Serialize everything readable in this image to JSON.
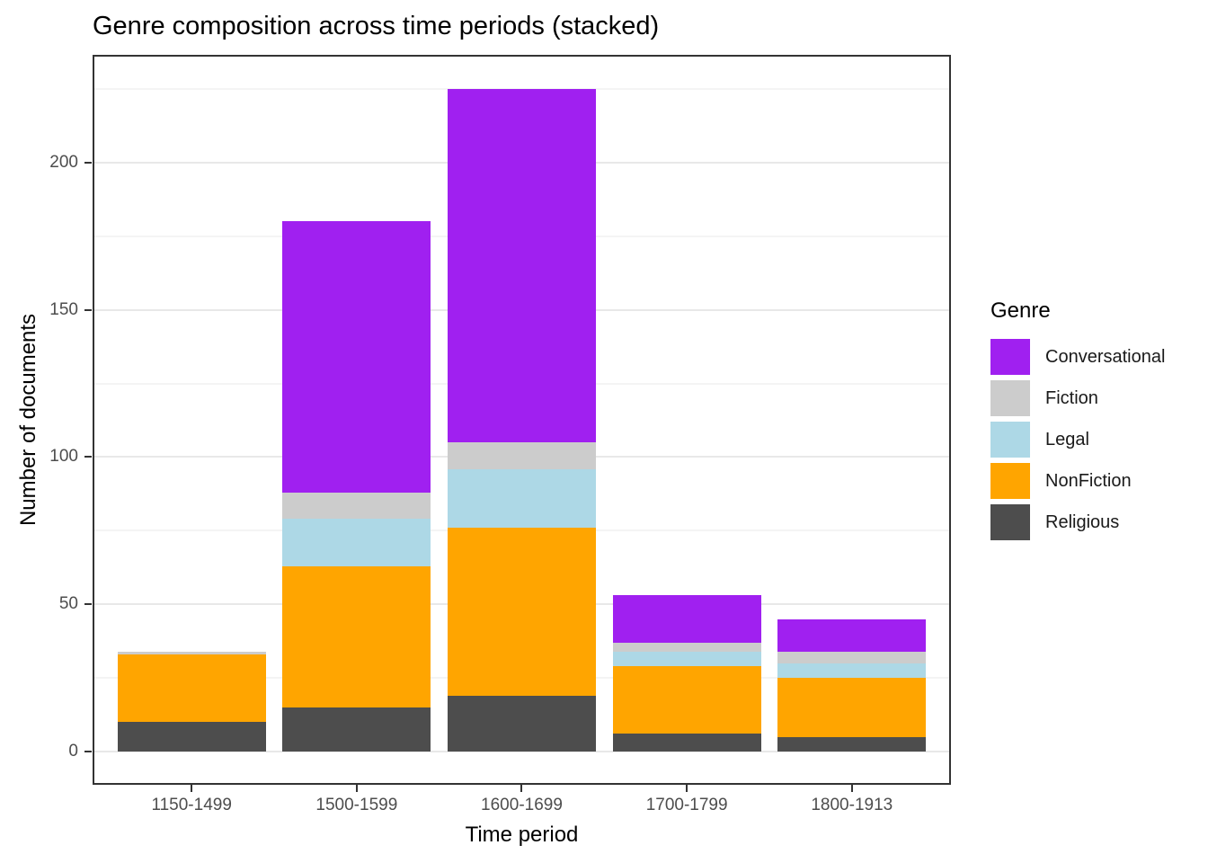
{
  "chart_data": {
    "type": "bar",
    "stacked": true,
    "title": "Genre composition across time periods (stacked)",
    "xlabel": "Time period",
    "ylabel": "Number of documents",
    "categories": [
      "1150-1499",
      "1500-1599",
      "1600-1699",
      "1700-1799",
      "1800-1913"
    ],
    "series": [
      {
        "name": "Religious",
        "color": "#4D4D4D",
        "values": [
          10,
          15,
          19,
          6,
          5
        ]
      },
      {
        "name": "NonFiction",
        "color": "#FFA500",
        "values": [
          23,
          48,
          57,
          23,
          20
        ]
      },
      {
        "name": "Legal",
        "color": "#ADD8E6",
        "values": [
          0,
          16,
          20,
          5,
          5
        ]
      },
      {
        "name": "Fiction",
        "color": "#CCCCCC",
        "values": [
          1,
          9,
          9,
          3,
          4
        ]
      },
      {
        "name": "Conversational",
        "color": "#A020F0",
        "values": [
          0,
          92,
          120,
          16,
          11
        ]
      }
    ],
    "totals": [
      34,
      180,
      225,
      53,
      45
    ],
    "y_ticks": [
      0,
      50,
      100,
      150,
      200
    ],
    "y_minor_ticks": [
      25,
      75,
      125,
      175,
      225
    ],
    "ylim": [
      0,
      236.25
    ],
    "grid": true,
    "legend": {
      "title": "Genre",
      "position": "right",
      "entries": [
        "Conversational",
        "Fiction",
        "Legal",
        "NonFiction",
        "Religious"
      ]
    }
  }
}
